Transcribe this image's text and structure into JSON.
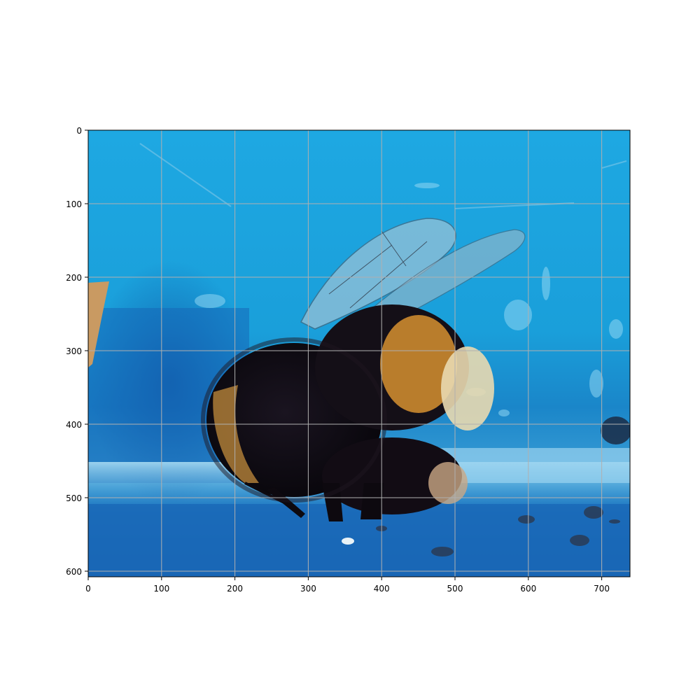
{
  "figure": {
    "subject": "bumblebee on blue painted surface",
    "image_extent": {
      "width": 740,
      "height": 610
    },
    "x_ticks": [
      "0",
      "100",
      "200",
      "300",
      "400",
      "500",
      "600",
      "700"
    ],
    "y_ticks": [
      "0",
      "100",
      "200",
      "300",
      "400",
      "500",
      "600"
    ],
    "grid": true,
    "colors": {
      "background_blue": "#1aa6df",
      "deep_blue": "#0f5fae",
      "shadow_blue": "#1672bd",
      "floor_light": "#8fd0ee",
      "bee_black": "#120d14",
      "bee_orange": "#c8872f",
      "bee_cream": "#e9d9b0",
      "wing": "#a9c6d6",
      "left_object": "#c99a62",
      "grid": "#b0b0b0"
    }
  }
}
